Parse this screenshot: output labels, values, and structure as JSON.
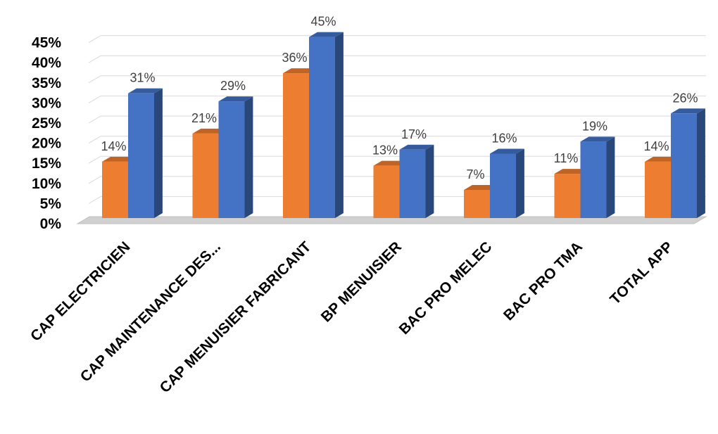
{
  "chart_data": {
    "type": "bar",
    "style": "3d-clustered-column",
    "categories": [
      "CAP ELECTRICIEN",
      "CAP MAINTENANCE DES...",
      "CAP MENUISIER FABRICANT",
      "BP MENUISIER",
      "BAC PRO MELEC",
      "BAC PRO TMA",
      "TOTAL APP"
    ],
    "series": [
      {
        "values": [
          14,
          21,
          36,
          13,
          7,
          11,
          14
        ],
        "labels": [
          "14%",
          "21%",
          "36%",
          "13%",
          "7%",
          "11%",
          "14%"
        ],
        "color": "#ED7D31"
      },
      {
        "values": [
          31,
          29,
          45,
          17,
          16,
          19,
          26
        ],
        "labels": [
          "31%",
          "29%",
          "45%",
          "17%",
          "16%",
          "19%",
          "26%"
        ],
        "color": "#4472C4"
      }
    ],
    "y_ticks": [
      "0%",
      "5%",
      "10%",
      "15%",
      "20%",
      "25%",
      "30%",
      "35%",
      "40%",
      "45%"
    ],
    "ylim": [
      0,
      45
    ],
    "grid": true,
    "legend": "none",
    "title": "",
    "xlabel": "",
    "ylabel": ""
  }
}
